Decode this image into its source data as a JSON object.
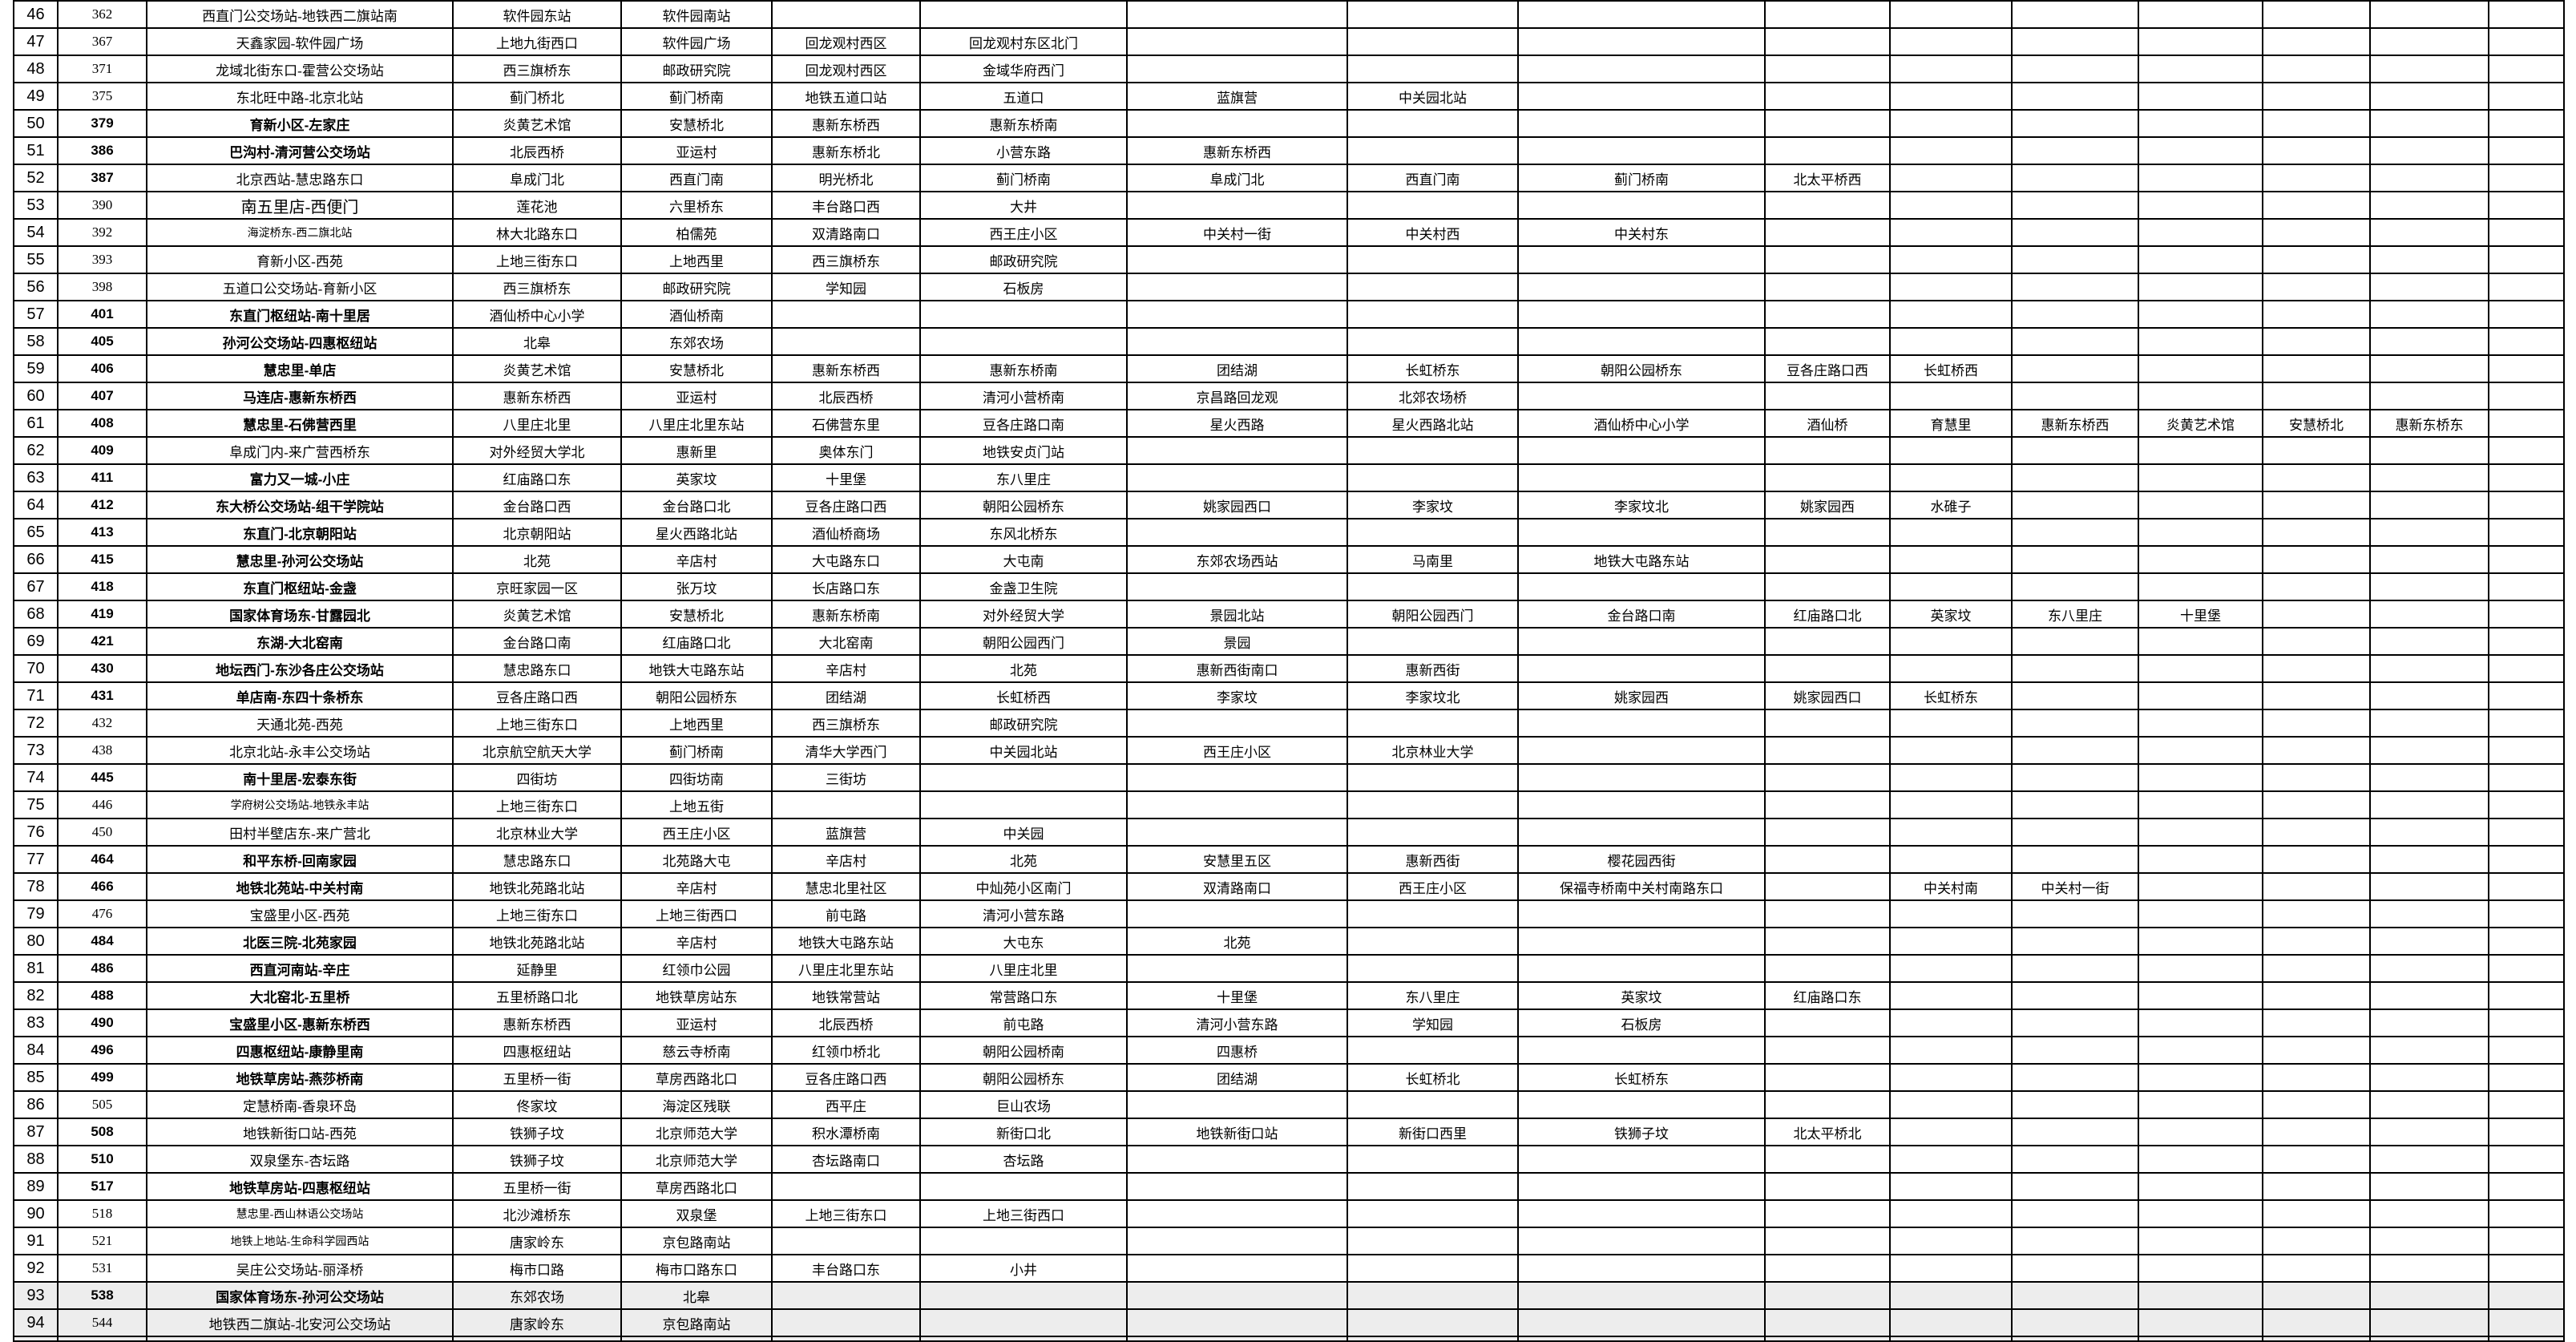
{
  "table": {
    "description_rows_visible": "46-94",
    "rows": [
      {
        "num": "46",
        "id": "362",
        "name": "西直门公交场站-地铁西二旗站南",
        "id_bold": false,
        "name_bold": false,
        "name_size": "normal",
        "shaded": false,
        "stations": [
          "软件园东站",
          "软件园南站"
        ]
      },
      {
        "num": "47",
        "id": "367",
        "name": "天鑫家园-软件园广场",
        "id_bold": false,
        "name_bold": false,
        "name_size": "normal",
        "shaded": false,
        "stations": [
          "上地九街西口",
          "软件园广场",
          "回龙观村西区",
          "回龙观村东区北门"
        ]
      },
      {
        "num": "48",
        "id": "371",
        "name": "龙域北街东口-霍营公交场站",
        "id_bold": false,
        "name_bold": false,
        "name_size": "normal",
        "shaded": false,
        "stations": [
          "西三旗桥东",
          "邮政研究院",
          "回龙观村西区",
          "金域华府西门"
        ]
      },
      {
        "num": "49",
        "id": "375",
        "name": "东北旺中路-北京北站",
        "id_bold": false,
        "name_bold": false,
        "name_size": "normal",
        "shaded": false,
        "stations": [
          "蓟门桥北",
          "蓟门桥南",
          "地铁五道口站",
          "五道口",
          "蓝旗营",
          "中关园北站"
        ]
      },
      {
        "num": "50",
        "id": "379",
        "name": "育新小区-左家庄",
        "id_bold": true,
        "name_bold": true,
        "name_size": "normal",
        "shaded": false,
        "stations": [
          "炎黄艺术馆",
          "安慧桥北",
          "惠新东桥西",
          "惠新东桥南"
        ]
      },
      {
        "num": "51",
        "id": "386",
        "name": "巴沟村-清河营公交场站",
        "id_bold": true,
        "name_bold": true,
        "name_size": "normal",
        "shaded": false,
        "stations": [
          "北辰西桥",
          "亚运村",
          "惠新东桥北",
          "小营东路",
          "惠新东桥西"
        ]
      },
      {
        "num": "52",
        "id": "387",
        "name": "北京西站-慧忠路东口",
        "id_bold": true,
        "name_bold": false,
        "name_size": "normal",
        "shaded": false,
        "stations": [
          "阜成门北",
          "西直门南",
          "明光桥北",
          "蓟门桥南",
          "阜成门北",
          "西直门南",
          "蓟门桥南",
          "北太平桥西"
        ]
      },
      {
        "num": "53",
        "id": "390",
        "name": "南五里店-西便门",
        "id_bold": false,
        "name_bold": false,
        "name_size": "large",
        "shaded": false,
        "stations": [
          "莲花池",
          "六里桥东",
          "丰台路口西",
          "大井"
        ]
      },
      {
        "num": "54",
        "id": "392",
        "name": "海淀桥东-西二旗北站",
        "id_bold": false,
        "name_bold": false,
        "name_size": "small",
        "shaded": false,
        "stations": [
          "林大北路东口",
          "柏儒苑",
          "双清路南口",
          "西王庄小区",
          "中关村一街",
          "中关村西",
          "中关村东"
        ]
      },
      {
        "num": "55",
        "id": "393",
        "name": "育新小区-西苑",
        "id_bold": false,
        "name_bold": false,
        "name_size": "normal",
        "shaded": false,
        "stations": [
          "上地三街东口",
          "上地西里",
          "西三旗桥东",
          "邮政研究院"
        ]
      },
      {
        "num": "56",
        "id": "398",
        "name": "五道口公交场站-育新小区",
        "id_bold": false,
        "name_bold": false,
        "name_size": "normal",
        "shaded": false,
        "stations": [
          "西三旗桥东",
          "邮政研究院",
          "学知园",
          "石板房"
        ]
      },
      {
        "num": "57",
        "id": "401",
        "name": "东直门枢纽站-南十里居",
        "id_bold": true,
        "name_bold": true,
        "name_size": "normal",
        "shaded": false,
        "stations": [
          "酒仙桥中心小学",
          "酒仙桥南"
        ]
      },
      {
        "num": "58",
        "id": "405",
        "name": "孙河公交场站-四惠枢纽站",
        "id_bold": true,
        "name_bold": true,
        "name_size": "normal",
        "shaded": false,
        "stations": [
          "北皋",
          "东郊农场"
        ]
      },
      {
        "num": "59",
        "id": "406",
        "name": "慧忠里-单店",
        "id_bold": true,
        "name_bold": true,
        "name_size": "normal",
        "shaded": false,
        "stations": [
          "炎黄艺术馆",
          "安慧桥北",
          "惠新东桥西",
          "惠新东桥南",
          "团结湖",
          "长虹桥东",
          "朝阳公园桥东",
          "豆各庄路口西",
          "长虹桥西"
        ]
      },
      {
        "num": "60",
        "id": "407",
        "name": "马连店-惠新东桥西",
        "id_bold": true,
        "name_bold": true,
        "name_size": "normal",
        "shaded": false,
        "stations": [
          "惠新东桥西",
          "亚运村",
          "北辰西桥",
          "清河小营桥南",
          "京昌路回龙观",
          "北郊农场桥"
        ]
      },
      {
        "num": "61",
        "id": "408",
        "name": "慧忠里-石佛营西里",
        "id_bold": true,
        "name_bold": true,
        "name_size": "normal",
        "shaded": false,
        "stations": [
          "八里庄北里",
          "八里庄北里东站",
          "石佛营东里",
          "豆各庄路口南",
          "星火西路",
          "星火西路北站",
          "酒仙桥中心小学",
          "酒仙桥",
          "育慧里",
          "惠新东桥西",
          "炎黄艺术馆",
          "安慧桥北",
          "惠新东桥东"
        ]
      },
      {
        "num": "62",
        "id": "409",
        "name": "阜成门内-来广营西桥东",
        "id_bold": true,
        "name_bold": false,
        "name_size": "normal",
        "shaded": false,
        "stations": [
          "对外经贸大学北",
          "惠新里",
          "奥体东门",
          "地铁安贞门站"
        ]
      },
      {
        "num": "63",
        "id": "411",
        "name": "富力又一城-小庄",
        "id_bold": true,
        "name_bold": true,
        "name_size": "normal",
        "shaded": false,
        "stations": [
          "红庙路口东",
          "英家坟",
          "十里堡",
          "东八里庄"
        ]
      },
      {
        "num": "64",
        "id": "412",
        "name": "东大桥公交场站-组干学院站",
        "id_bold": true,
        "name_bold": true,
        "name_size": "normal",
        "shaded": false,
        "stations": [
          "金台路口西",
          "金台路口北",
          "豆各庄路口西",
          "朝阳公园桥东",
          "姚家园西口",
          "李家坟",
          "李家坟北",
          "姚家园西",
          "水碓子"
        ]
      },
      {
        "num": "65",
        "id": "413",
        "name": "东直门-北京朝阳站",
        "id_bold": true,
        "name_bold": true,
        "name_size": "normal",
        "shaded": false,
        "stations": [
          "北京朝阳站",
          "星火西路北站",
          "酒仙桥商场",
          "东风北桥东"
        ]
      },
      {
        "num": "66",
        "id": "415",
        "name": "慧忠里-孙河公交场站",
        "id_bold": true,
        "name_bold": true,
        "name_size": "normal",
        "shaded": false,
        "stations": [
          "北苑",
          "辛店村",
          "大屯路东口",
          "大屯南",
          "东郊农场西站",
          "马南里",
          "地铁大屯路东站"
        ]
      },
      {
        "num": "67",
        "id": "418",
        "name": "东直门枢纽站-金盏",
        "id_bold": true,
        "name_bold": true,
        "name_size": "normal",
        "shaded": false,
        "stations": [
          "京旺家园一区",
          "张万坟",
          "长店路口东",
          "金盏卫生院"
        ]
      },
      {
        "num": "68",
        "id": "419",
        "name": "国家体育场东-甘露园北",
        "id_bold": true,
        "name_bold": true,
        "name_size": "normal",
        "shaded": false,
        "stations": [
          "炎黄艺术馆",
          "安慧桥北",
          "惠新东桥南",
          "对外经贸大学",
          "景园北站",
          "朝阳公园西门",
          "金台路口南",
          "红庙路口北",
          "英家坟",
          "东八里庄",
          "十里堡"
        ]
      },
      {
        "num": "69",
        "id": "421",
        "name": "东湖-大北窑南",
        "id_bold": true,
        "name_bold": true,
        "name_size": "normal",
        "shaded": false,
        "stations": [
          "金台路口南",
          "红庙路口北",
          "大北窑南",
          "朝阳公园西门",
          "景园"
        ]
      },
      {
        "num": "70",
        "id": "430",
        "name": "地坛西门-东沙各庄公交场站",
        "id_bold": true,
        "name_bold": true,
        "name_size": "normal",
        "shaded": false,
        "stations": [
          "慧忠路东口",
          "地铁大屯路东站",
          "辛店村",
          "北苑",
          "惠新西街南口",
          "惠新西街"
        ]
      },
      {
        "num": "71",
        "id": "431",
        "name": "单店南-东四十条桥东",
        "id_bold": true,
        "name_bold": true,
        "name_size": "normal",
        "shaded": false,
        "stations": [
          "豆各庄路口西",
          "朝阳公园桥东",
          "团结湖",
          "长虹桥西",
          "李家坟",
          "李家坟北",
          "姚家园西",
          "姚家园西口",
          "长虹桥东"
        ]
      },
      {
        "num": "72",
        "id": "432",
        "name": "天通北苑-西苑",
        "id_bold": false,
        "name_bold": false,
        "name_size": "normal",
        "shaded": false,
        "stations": [
          "上地三街东口",
          "上地西里",
          "西三旗桥东",
          "邮政研究院"
        ]
      },
      {
        "num": "73",
        "id": "438",
        "name": "北京北站-永丰公交场站",
        "id_bold": false,
        "name_bold": false,
        "name_size": "normal",
        "shaded": false,
        "stations": [
          "北京航空航天大学",
          "蓟门桥南",
          "清华大学西门",
          "中关园北站",
          "西王庄小区",
          "北京林业大学"
        ]
      },
      {
        "num": "74",
        "id": "445",
        "name": "南十里居-宏泰东街",
        "id_bold": true,
        "name_bold": true,
        "name_size": "normal",
        "shaded": false,
        "stations": [
          "四街坊",
          "四街坊南",
          "三街坊"
        ]
      },
      {
        "num": "75",
        "id": "446",
        "name": "学府树公交场站-地铁永丰站",
        "id_bold": false,
        "name_bold": false,
        "name_size": "small",
        "shaded": false,
        "stations": [
          "上地三街东口",
          "上地五街"
        ]
      },
      {
        "num": "76",
        "id": "450",
        "name": "田村半壁店东-来广营北",
        "id_bold": false,
        "name_bold": false,
        "name_size": "normal",
        "shaded": false,
        "stations": [
          "北京林业大学",
          "西王庄小区",
          "蓝旗营",
          "中关园"
        ]
      },
      {
        "num": "77",
        "id": "464",
        "name": "和平东桥-回南家园",
        "id_bold": true,
        "name_bold": true,
        "name_size": "normal",
        "shaded": false,
        "stations": [
          "慧忠路东口",
          "北苑路大屯",
          "辛店村",
          "北苑",
          "安慧里五区",
          "惠新西街",
          "樱花园西街"
        ]
      },
      {
        "num": "78",
        "id": "466",
        "name": "地铁北苑站-中关村南",
        "id_bold": true,
        "name_bold": true,
        "name_size": "normal",
        "shaded": false,
        "stations": [
          "地铁北苑路北站",
          "辛店村",
          "慧忠北里社区",
          "中灿苑小区南门",
          "双清路南口",
          "西王庄小区",
          "保福寺桥南中关村南路东口",
          "",
          "中关村南",
          "中关村一街"
        ]
      },
      {
        "num": "79",
        "id": "476",
        "name": "宝盛里小区-西苑",
        "id_bold": false,
        "name_bold": false,
        "name_size": "normal",
        "shaded": false,
        "stations": [
          "上地三街东口",
          "上地三街西口",
          "前屯路",
          "清河小营东路"
        ]
      },
      {
        "num": "80",
        "id": "484",
        "name": "北医三院-北苑家园",
        "id_bold": true,
        "name_bold": true,
        "name_size": "normal",
        "shaded": false,
        "stations": [
          "地铁北苑路北站",
          "辛店村",
          "地铁大屯路东站",
          "大屯东",
          "北苑"
        ]
      },
      {
        "num": "81",
        "id": "486",
        "name": "西直河南站-辛庄",
        "id_bold": true,
        "name_bold": true,
        "name_size": "normal",
        "shaded": false,
        "stations": [
          "延静里",
          "红领巾公园",
          "八里庄北里东站",
          "八里庄北里"
        ]
      },
      {
        "num": "82",
        "id": "488",
        "name": "大北窑北-五里桥",
        "id_bold": true,
        "name_bold": true,
        "name_size": "normal",
        "shaded": false,
        "stations": [
          "五里桥路口北",
          "地铁草房站东",
          "地铁常营站",
          "常营路口东",
          "十里堡",
          "东八里庄",
          "英家坟",
          "红庙路口东"
        ]
      },
      {
        "num": "83",
        "id": "490",
        "name": "宝盛里小区-惠新东桥西",
        "id_bold": true,
        "name_bold": true,
        "name_size": "normal",
        "shaded": false,
        "stations": [
          "惠新东桥西",
          "亚运村",
          "北辰西桥",
          "前屯路",
          "清河小营东路",
          "学知园",
          "石板房"
        ]
      },
      {
        "num": "84",
        "id": "496",
        "name": "四惠枢纽站-康静里南",
        "id_bold": true,
        "name_bold": true,
        "name_size": "normal",
        "shaded": false,
        "stations": [
          "四惠枢纽站",
          "慈云寺桥南",
          "红领巾桥北",
          "朝阳公园桥南",
          "四惠桥"
        ]
      },
      {
        "num": "85",
        "id": "499",
        "name": "地铁草房站-燕莎桥南",
        "id_bold": true,
        "name_bold": true,
        "name_size": "normal",
        "shaded": false,
        "stations": [
          "五里桥一街",
          "草房西路北口",
          "豆各庄路口西",
          "朝阳公园桥东",
          "团结湖",
          "长虹桥北",
          "长虹桥东"
        ]
      },
      {
        "num": "86",
        "id": "505",
        "name": "定慧桥南-香泉环岛",
        "id_bold": false,
        "name_bold": false,
        "name_size": "normal",
        "shaded": false,
        "stations": [
          "佟家坟",
          "海淀区残联",
          "西平庄",
          "巨山农场"
        ]
      },
      {
        "num": "87",
        "id": "508",
        "name": "地铁新街口站-西苑",
        "id_bold": true,
        "name_bold": false,
        "name_size": "normal",
        "shaded": false,
        "stations": [
          "铁狮子坟",
          "北京师范大学",
          "积水潭桥南",
          "新街口北",
          "地铁新街口站",
          "新街口西里",
          "铁狮子坟",
          "北太平桥北"
        ]
      },
      {
        "num": "88",
        "id": "510",
        "name": "双泉堡东-杏坛路",
        "id_bold": true,
        "name_bold": false,
        "name_size": "normal",
        "shaded": false,
        "stations": [
          "铁狮子坟",
          "北京师范大学",
          "杏坛路南口",
          "杏坛路"
        ]
      },
      {
        "num": "89",
        "id": "517",
        "name": "地铁草房站-四惠枢纽站",
        "id_bold": true,
        "name_bold": true,
        "name_size": "normal",
        "shaded": false,
        "stations": [
          "五里桥一街",
          "草房西路北口"
        ]
      },
      {
        "num": "90",
        "id": "518",
        "name": "慧忠里-西山林语公交场站",
        "id_bold": false,
        "name_bold": false,
        "name_size": "small",
        "shaded": false,
        "stations": [
          "北沙滩桥东",
          "双泉堡",
          "上地三街东口",
          "上地三街西口"
        ]
      },
      {
        "num": "91",
        "id": "521",
        "name": "地铁上地站-生命科学园西站",
        "id_bold": false,
        "name_bold": false,
        "name_size": "small",
        "shaded": false,
        "stations": [
          "唐家岭东",
          "京包路南站"
        ]
      },
      {
        "num": "92",
        "id": "531",
        "name": "吴庄公交场站-丽泽桥",
        "id_bold": false,
        "name_bold": false,
        "name_size": "normal",
        "shaded": false,
        "stations": [
          "梅市口路",
          "梅市口路东口",
          "丰台路口东",
          "小井"
        ]
      },
      {
        "num": "93",
        "id": "538",
        "name": "国家体育场东-孙河公交场站",
        "id_bold": true,
        "name_bold": true,
        "name_size": "normal",
        "shaded": true,
        "stations": [
          "东郊农场",
          "北皋"
        ]
      },
      {
        "num": "94",
        "id": "544",
        "name": "地铁西二旗站-北安河公交场站",
        "id_bold": false,
        "name_bold": false,
        "name_size": "normal",
        "shaded": true,
        "stations": [
          "唐家岭东",
          "京包路南站"
        ]
      }
    ]
  }
}
